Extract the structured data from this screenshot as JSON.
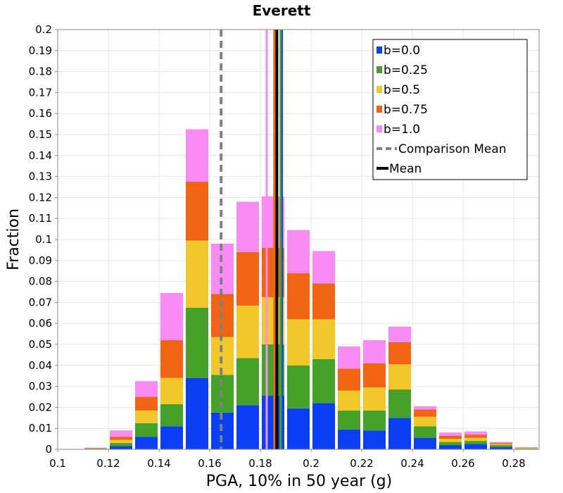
{
  "chart_data": {
    "type": "bar",
    "stacked": true,
    "title": "Everett",
    "xlabel": "PGA, 10% in 50 year (g)",
    "ylabel": "Fraction",
    "xlim": [
      0.1,
      0.29
    ],
    "ylim": [
      0,
      0.2
    ],
    "bin_width": 0.01,
    "grid": true,
    "legend_position": "top-right",
    "x_ticks": [
      "0.1",
      "0.12",
      "0.14",
      "0.16",
      "0.18",
      "0.2",
      "0.22",
      "0.24",
      "0.26",
      "0.28"
    ],
    "y_ticks": [
      "0",
      "0.01",
      "0.02",
      "0.03",
      "0.04",
      "0.05",
      "0.06",
      "0.07",
      "0.08",
      "0.09",
      "0.1",
      "0.11",
      "0.12",
      "0.13",
      "0.14",
      "0.15",
      "0.16",
      "0.17",
      "0.18",
      "0.19",
      "0.2"
    ],
    "bin_centers": [
      0.115,
      0.125,
      0.135,
      0.145,
      0.155,
      0.165,
      0.175,
      0.185,
      0.195,
      0.205,
      0.215,
      0.225,
      0.235,
      0.245,
      0.255,
      0.265,
      0.275,
      0.285
    ],
    "series": [
      {
        "name": "b=0.0",
        "color": "#0a3ff5",
        "values": [
          0.0002,
          0.0015,
          0.006,
          0.011,
          0.034,
          0.0175,
          0.021,
          0.0255,
          0.0195,
          0.022,
          0.0095,
          0.009,
          0.015,
          0.0055,
          0.002,
          0.0025,
          0.001,
          0.0002
        ]
      },
      {
        "name": "b=0.25",
        "color": "#46a12a",
        "values": [
          0.0001,
          0.0015,
          0.0065,
          0.0105,
          0.0335,
          0.018,
          0.0225,
          0.0245,
          0.0205,
          0.021,
          0.009,
          0.0095,
          0.0135,
          0.0055,
          0.0015,
          0.0015,
          0.001,
          0.0002
        ]
      },
      {
        "name": "b=0.5",
        "color": "#f0c82a",
        "values": [
          0.0001,
          0.0015,
          0.006,
          0.0125,
          0.032,
          0.018,
          0.025,
          0.0225,
          0.022,
          0.019,
          0.0095,
          0.011,
          0.012,
          0.0045,
          0.0015,
          0.0015,
          0.0005,
          0.0002
        ]
      },
      {
        "name": "b=0.75",
        "color": "#f06414",
        "values": [
          0.0001,
          0.0015,
          0.0065,
          0.018,
          0.028,
          0.0205,
          0.0255,
          0.0235,
          0.022,
          0.017,
          0.0105,
          0.0115,
          0.0105,
          0.0035,
          0.0015,
          0.0015,
          0.0005,
          0.0002
        ]
      },
      {
        "name": "b=1.0",
        "color": "#f88cf4",
        "values": [
          0.0003,
          0.003,
          0.0075,
          0.0225,
          0.025,
          0.024,
          0.024,
          0.0245,
          0.0205,
          0.0155,
          0.0105,
          0.011,
          0.0075,
          0.0015,
          0.0015,
          0.0015,
          0.0005,
          0.0002
        ]
      }
    ],
    "reference_lines": [
      {
        "name": "Comparison Mean",
        "x": 0.1645,
        "color": "#808080",
        "style": "dashed"
      },
      {
        "name": "Mean",
        "x": 0.1865,
        "color": "#000000",
        "style": "solid"
      }
    ],
    "series_means": [
      {
        "name": "b=0.0",
        "x": 0.1885,
        "color": "#0a3ff5"
      },
      {
        "name": "b=0.25",
        "x": 0.188,
        "color": "#46a12a"
      },
      {
        "name": "b=0.5",
        "x": 0.1865,
        "color": "#f0c82a"
      },
      {
        "name": "b=0.75",
        "x": 0.1855,
        "color": "#f06414"
      },
      {
        "name": "b=1.0",
        "x": 0.1825,
        "color": "#f88cf4"
      }
    ]
  }
}
